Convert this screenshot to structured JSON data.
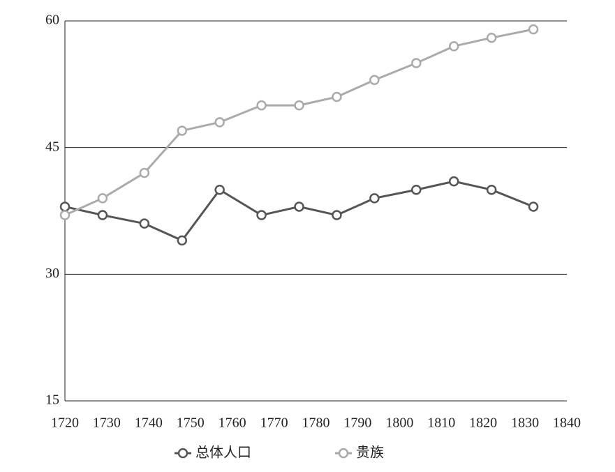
{
  "chart_data": {
    "type": "line",
    "x": [
      1720,
      1729,
      1739,
      1748,
      1757,
      1767,
      1776,
      1785,
      1794,
      1804,
      1813,
      1822,
      1832
    ],
    "series": [
      {
        "name": "总体人口",
        "color": "#555555",
        "values": [
          38,
          37,
          36,
          34,
          40,
          37,
          38,
          37,
          39,
          40,
          41,
          40,
          38
        ]
      },
      {
        "name": "贵族",
        "color": "#aaaaaa",
        "values": [
          37,
          39,
          42,
          47,
          48,
          50,
          50,
          51,
          53,
          55,
          57,
          58,
          59
        ]
      }
    ],
    "xlim": [
      1720,
      1840
    ],
    "xticks": [
      1720,
      1730,
      1740,
      1750,
      1760,
      1770,
      1780,
      1790,
      1800,
      1810,
      1820,
      1830,
      1840
    ],
    "ylim": [
      15,
      60
    ],
    "yticks": [
      15,
      30,
      45,
      60
    ],
    "grid": true,
    "legend": "bottom"
  }
}
